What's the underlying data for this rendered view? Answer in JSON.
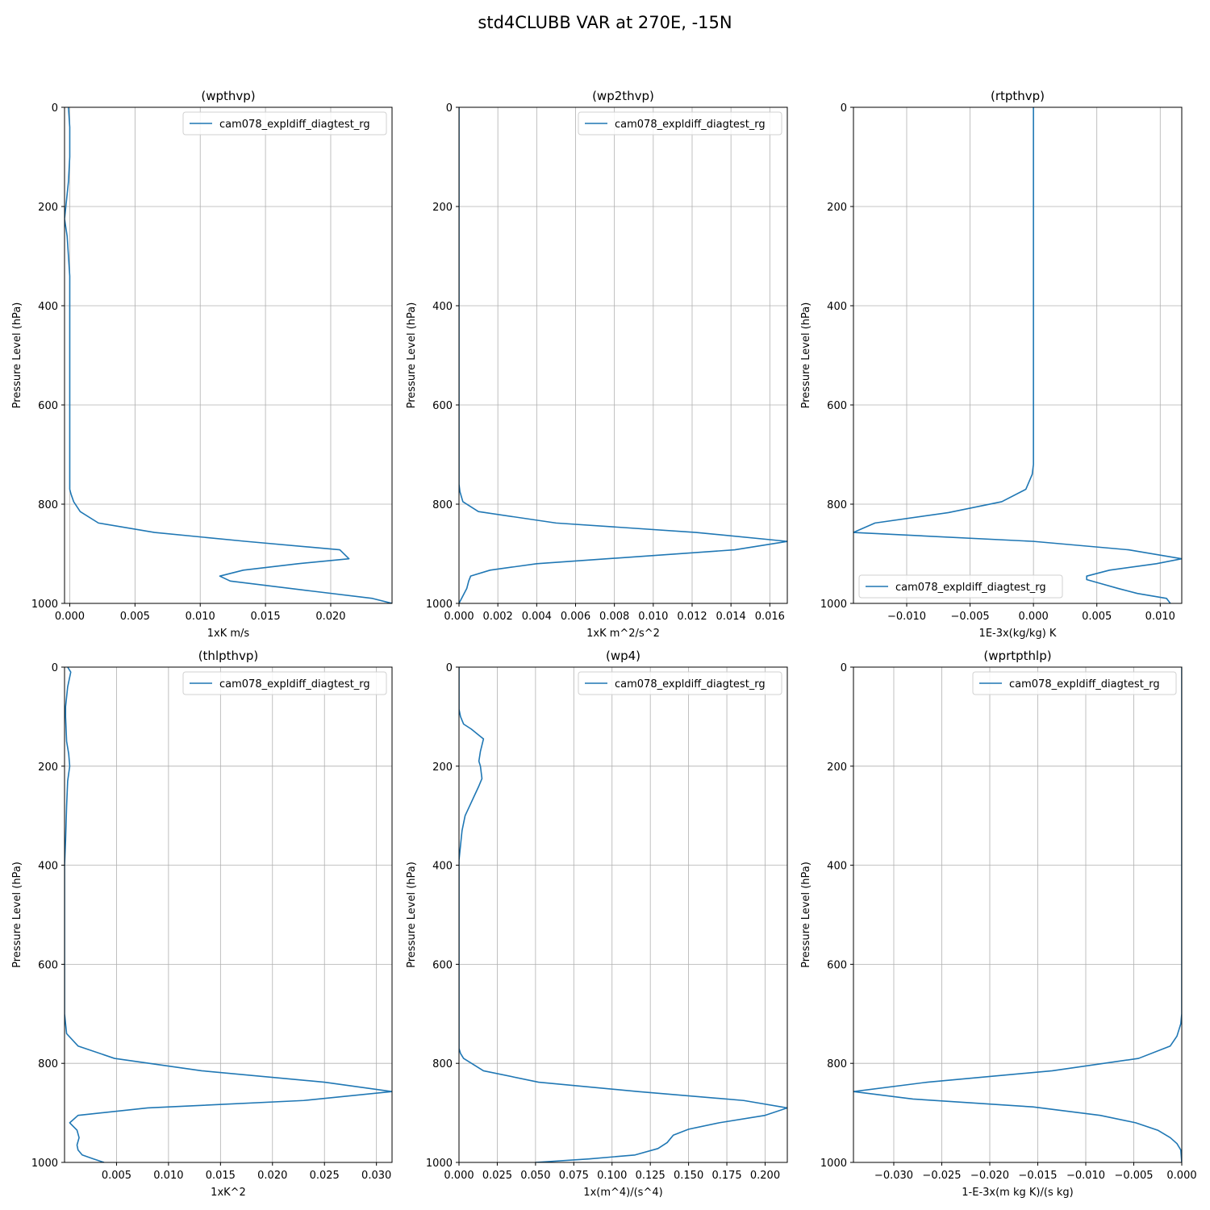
{
  "figure": {
    "title": "std4CLUBB VAR at 270E, -15N"
  },
  "style": {
    "line_color": "#1f77b4",
    "grid_color": "#b0b0b0"
  },
  "chart_data": [
    {
      "type": "line",
      "title": "(wpthvp)",
      "xlabel": "1xK m/s",
      "ylabel": "Pressure Level (hPa)",
      "xlim": [
        -0.0004,
        0.0247
      ],
      "ylim": [
        1000,
        0
      ],
      "xticks": [
        0.0,
        0.005,
        0.01,
        0.015,
        0.02
      ],
      "xtick_labels": [
        "0.000",
        "0.005",
        "0.010",
        "0.015",
        "0.020"
      ],
      "yticks": [
        0,
        200,
        400,
        600,
        800,
        1000
      ],
      "ytick_labels": [
        "0",
        "200",
        "400",
        "600",
        "800",
        "1000"
      ],
      "grid": true,
      "legend_position": "upper-right",
      "series": [
        {
          "name": "cam078_expldiff_diagtest_rg",
          "x": [
            -0.0001,
            0.0,
            0.0,
            -0.0001,
            -0.0003,
            -0.0004,
            -0.0002,
            -0.0001,
            0.0,
            0.0,
            0.0,
            0.0,
            0.0,
            0.0,
            0.0,
            0.0,
            0.0001,
            0.0003,
            0.0008,
            0.0022,
            0.0065,
            0.0135,
            0.0207,
            0.0214,
            0.0175,
            0.0133,
            0.0115,
            0.0123,
            0.0185,
            0.0232,
            0.0247
          ],
          "y": [
            0,
            40,
            100,
            150,
            200,
            225,
            260,
            300,
            340,
            400,
            500,
            600,
            700,
            740,
            760,
            770,
            780,
            795,
            815,
            838,
            857,
            875,
            892,
            910,
            920,
            933,
            945,
            955,
            975,
            990,
            1000
          ]
        }
      ]
    },
    {
      "type": "line",
      "title": "(wp2thvp)",
      "xlabel": "1xK m^2/s^2",
      "ylabel": "Pressure Level (hPa)",
      "xlim": [
        0.0,
        0.0169
      ],
      "ylim": [
        1000,
        0
      ],
      "xticks": [
        0.0,
        0.002,
        0.004,
        0.006,
        0.008,
        0.01,
        0.012,
        0.014,
        0.016
      ],
      "xtick_labels": [
        "0.000",
        "0.002",
        "0.004",
        "0.006",
        "0.008",
        "0.010",
        "0.012",
        "0.014",
        "0.016"
      ],
      "yticks": [
        0,
        200,
        400,
        600,
        800,
        1000
      ],
      "ytick_labels": [
        "0",
        "200",
        "400",
        "600",
        "800",
        "1000"
      ],
      "grid": true,
      "legend_position": "upper-right",
      "series": [
        {
          "name": "cam078_expldiff_diagtest_rg",
          "x": [
            0.0,
            0.0,
            0.0,
            0.0,
            0.0,
            0.0,
            0.0,
            5e-05,
            0.0002,
            0.001,
            0.005,
            0.0122,
            0.0169,
            0.0142,
            0.004,
            0.0016,
            0.0006,
            0.0005,
            0.0004,
            0.0002,
            0.0
          ],
          "y": [
            0,
            200,
            400,
            600,
            700,
            740,
            760,
            775,
            795,
            815,
            838,
            857,
            875,
            892,
            920,
            933,
            945,
            955,
            970,
            985,
            1000
          ]
        }
      ]
    },
    {
      "type": "line",
      "title": "(rtpthvp)",
      "xlabel": "1E-3x(kg/kg) K",
      "ylabel": "Pressure Level (hPa)",
      "xlim": [
        -0.0142,
        0.0117
      ],
      "ylim": [
        1000,
        0
      ],
      "xticks": [
        -0.01,
        -0.005,
        0.0,
        0.005,
        0.01
      ],
      "xtick_labels": [
        "−0.010",
        "−0.005",
        "0.000",
        "0.005",
        "0.010"
      ],
      "yticks": [
        0,
        200,
        400,
        600,
        800,
        1000
      ],
      "ytick_labels": [
        "0",
        "200",
        "400",
        "600",
        "800",
        "1000"
      ],
      "grid": true,
      "legend_position": "lower-left",
      "series": [
        {
          "name": "cam078_expldiff_diagtest_rg",
          "x": [
            0.0,
            0.0,
            0.0,
            0.0,
            0.0,
            0.0,
            0.0,
            -0.0001,
            -0.0006,
            -0.0025,
            -0.0067,
            -0.0125,
            -0.0142,
            0.0,
            0.0075,
            0.0117,
            0.0097,
            0.006,
            0.0042,
            0.0042,
            0.0053,
            0.0067,
            0.0082,
            0.0105,
            0.0108
          ],
          "y": [
            0,
            200,
            400,
            600,
            700,
            710,
            720,
            740,
            770,
            795,
            817,
            838,
            857,
            875,
            892,
            910,
            920,
            933,
            945,
            952,
            960,
            970,
            980,
            990,
            1000
          ]
        }
      ]
    },
    {
      "type": "line",
      "title": "(thlpthvp)",
      "xlabel": "1xK^2",
      "ylabel": "Pressure Level (hPa)",
      "xlim": [
        0.0,
        0.0315
      ],
      "ylim": [
        1000,
        0
      ],
      "xticks": [
        0.005,
        0.01,
        0.015,
        0.02,
        0.025,
        0.03
      ],
      "xtick_labels": [
        "0.005",
        "0.010",
        "0.015",
        "0.020",
        "0.025",
        "0.030"
      ],
      "yticks": [
        0,
        200,
        400,
        600,
        800,
        1000
      ],
      "ytick_labels": [
        "0",
        "200",
        "400",
        "600",
        "800",
        "1000"
      ],
      "grid": true,
      "legend_position": "upper-right",
      "series": [
        {
          "name": "cam078_expldiff_diagtest_rg",
          "x": [
            0.0003,
            0.0006,
            0.0003,
            0.0001,
            0.0001,
            0.0002,
            0.0004,
            0.0005,
            0.0003,
            0.0002,
            0.0001,
            0.0,
            0.0,
            0.0,
            0.0001,
            0.0002,
            0.0013,
            0.0048,
            0.0132,
            0.025,
            0.0315,
            0.023,
            0.008,
            0.0013,
            0.0005,
            0.0012,
            0.0014,
            0.0012,
            0.0013,
            0.0017,
            0.0028,
            0.0038
          ],
          "y": [
            0,
            10,
            40,
            80,
            100,
            150,
            175,
            200,
            230,
            280,
            350,
            400,
            600,
            700,
            720,
            740,
            765,
            790,
            815,
            838,
            857,
            875,
            890,
            905,
            920,
            935,
            950,
            965,
            975,
            985,
            993,
            1000
          ]
        }
      ]
    },
    {
      "type": "line",
      "title": "(wp4)",
      "xlabel": "1x(m^4)/(s^4)",
      "ylabel": "Pressure Level (hPa)",
      "xlim": [
        0.0,
        0.2145
      ],
      "ylim": [
        1000,
        0
      ],
      "xticks": [
        0.0,
        0.025,
        0.05,
        0.075,
        0.1,
        0.125,
        0.15,
        0.175,
        0.2
      ],
      "xtick_labels": [
        "0.000",
        "0.025",
        "0.050",
        "0.075",
        "0.100",
        "0.125",
        "0.150",
        "0.175",
        "0.200"
      ],
      "yticks": [
        0,
        200,
        400,
        600,
        800,
        1000
      ],
      "ytick_labels": [
        "0",
        "200",
        "400",
        "600",
        "800",
        "1000"
      ],
      "grid": true,
      "legend_position": "upper-right",
      "series": [
        {
          "name": "cam078_expldiff_diagtest_rg",
          "x": [
            0.0,
            0.0,
            0.001,
            0.003,
            0.008,
            0.014,
            0.016,
            0.014,
            0.013,
            0.014,
            0.015,
            0.013,
            0.01,
            0.007,
            0.004,
            0.002,
            0.001,
            0.0,
            0.0,
            0.0,
            0.0,
            0.0,
            0.0,
            0.001,
            0.003,
            0.016,
            0.052,
            0.117,
            0.186,
            0.2145,
            0.2,
            0.17,
            0.15,
            0.14,
            0.136,
            0.13,
            0.115,
            0.085,
            0.05
          ],
          "y": [
            0,
            85,
            100,
            115,
            125,
            140,
            145,
            170,
            190,
            200,
            225,
            240,
            260,
            280,
            300,
            330,
            360,
            390,
            400,
            600,
            700,
            760,
            770,
            780,
            790,
            815,
            838,
            857,
            875,
            890,
            905,
            920,
            933,
            945,
            960,
            972,
            985,
            993,
            1000
          ]
        }
      ]
    },
    {
      "type": "line",
      "title": "(wprtpthlp)",
      "xlabel": "1-E-3x(m kg K)/(s kg)",
      "ylabel": "Pressure Level (hPa)",
      "xlim": [
        -0.0342,
        0.0
      ],
      "ylim": [
        1000,
        0
      ],
      "xticks": [
        -0.03,
        -0.025,
        -0.02,
        -0.015,
        -0.01,
        -0.005,
        0.0
      ],
      "xtick_labels": [
        "−0.030",
        "−0.025",
        "−0.020",
        "−0.015",
        "−0.010",
        "−0.005",
        "0.000"
      ],
      "yticks": [
        0,
        200,
        400,
        600,
        800,
        1000
      ],
      "ytick_labels": [
        "0",
        "200",
        "400",
        "600",
        "800",
        "1000"
      ],
      "grid": true,
      "legend_position": "upper-right",
      "series": [
        {
          "name": "cam078_expldiff_diagtest_rg",
          "x": [
            0.0,
            0.0,
            0.0,
            0.0,
            0.0,
            -0.0001,
            -0.0005,
            -0.0012,
            -0.0045,
            -0.0135,
            -0.0265,
            -0.0342,
            -0.028,
            -0.0155,
            -0.0085,
            -0.0048,
            -0.0025,
            -0.0012,
            -0.0005,
            -0.0001,
            0.0
          ],
          "y": [
            0,
            200,
            400,
            600,
            700,
            720,
            745,
            765,
            790,
            815,
            838,
            857,
            872,
            888,
            905,
            920,
            935,
            950,
            962,
            975,
            1000
          ]
        }
      ]
    }
  ]
}
